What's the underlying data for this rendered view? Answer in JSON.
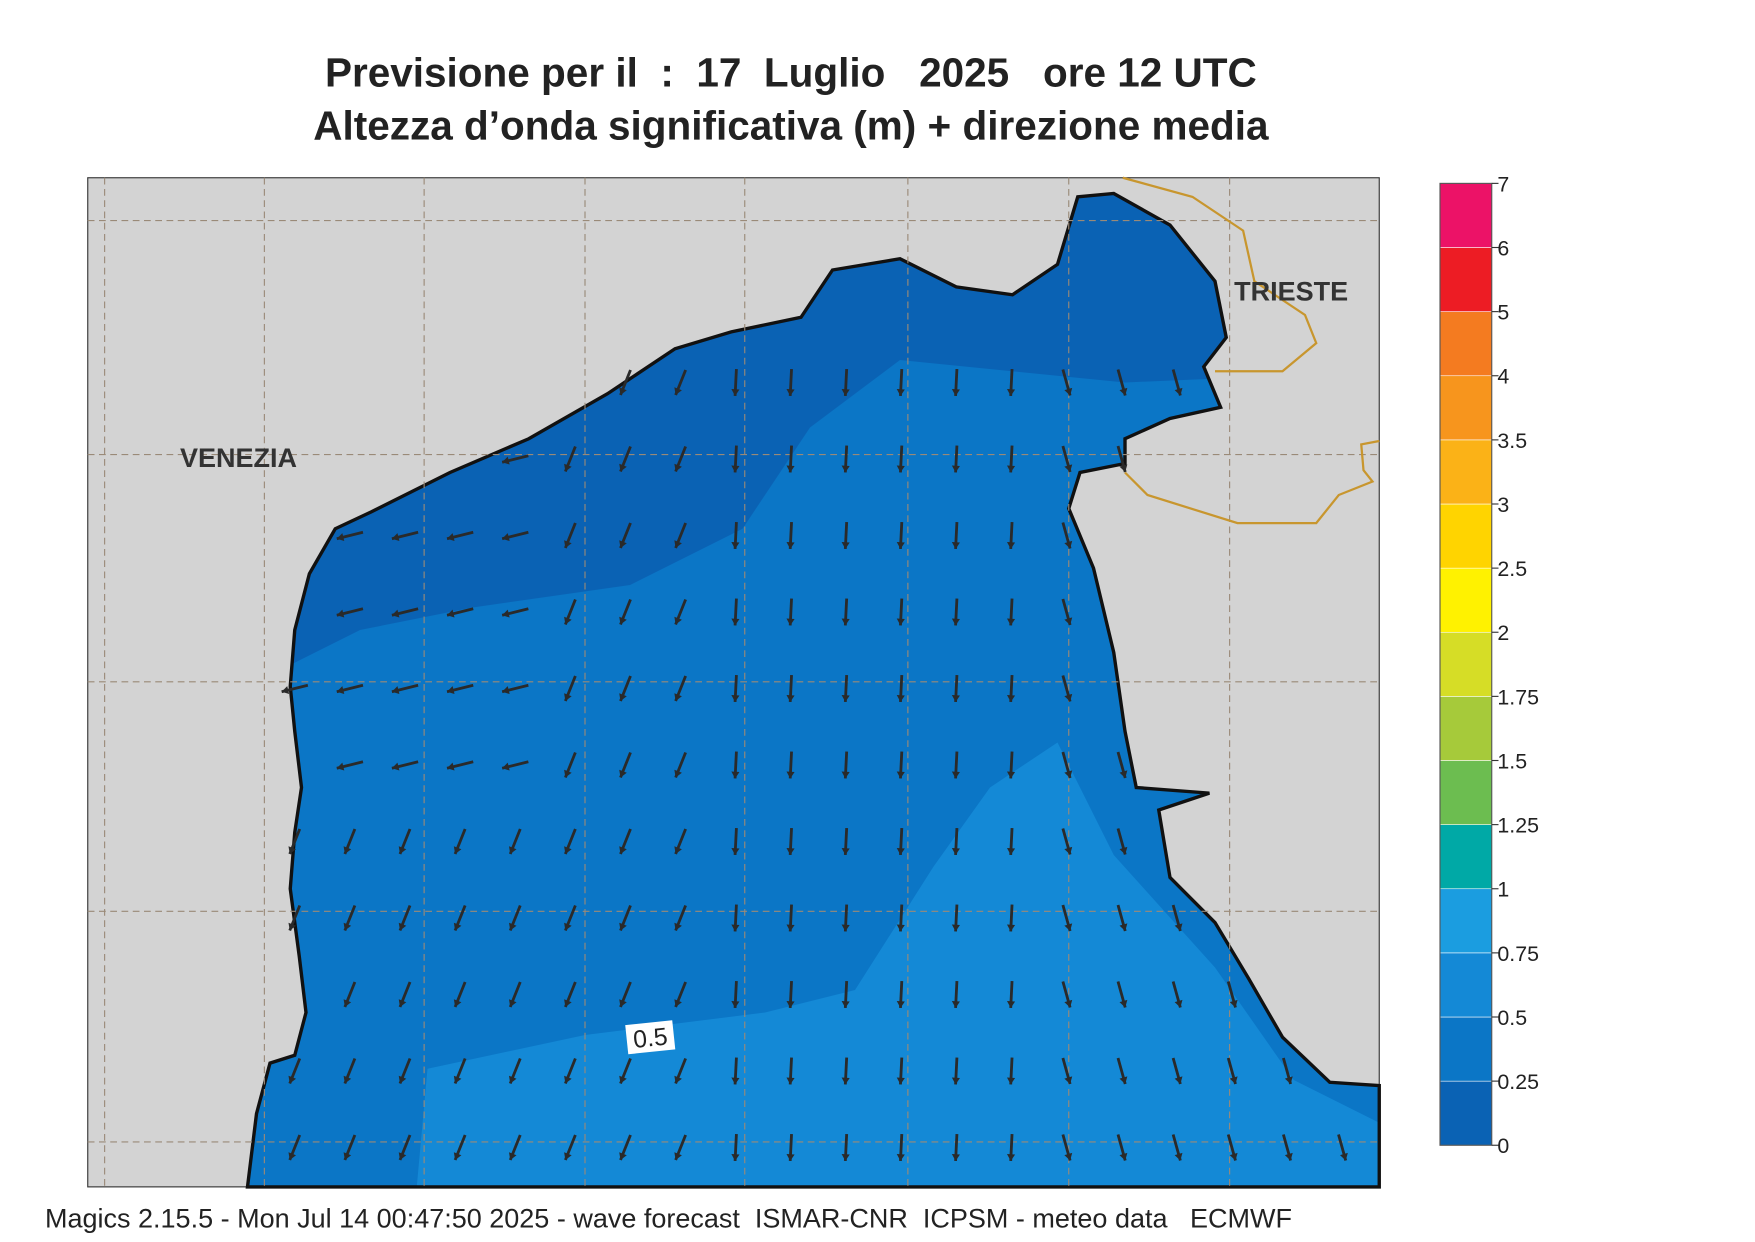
{
  "title": {
    "line1": "Previsione per il  :  17  Luglio   2025   ore 12 UTC",
    "line2": "Altezza d’onda significativa (m) + direzione media"
  },
  "map": {
    "labels": [
      "VENEZIA",
      "TRIESTE"
    ],
    "contour_label": 0.5
  },
  "legend": {
    "levels": [
      0,
      0.25,
      0.5,
      0.75,
      1,
      1.25,
      1.5,
      1.75,
      2,
      2.5,
      3,
      3.5,
      4,
      5,
      6,
      7
    ],
    "colors": [
      "#0a62b4",
      "#0b76c6",
      "#1489d6",
      "#1b9de0",
      "#00a9a6",
      "#6cbd50",
      "#a6ca3a",
      "#d6dd26",
      "#fff200",
      "#ffd400",
      "#fbb217",
      "#f7951d",
      "#f47b20",
      "#ed1c24",
      "#ec1267"
    ]
  },
  "footer": "Magics 2.15.5 - Mon Jul 14 00:47:50 2025 - wave forecast  ISMAR-CNR  ICPSM - meteo data   ECMWF"
}
